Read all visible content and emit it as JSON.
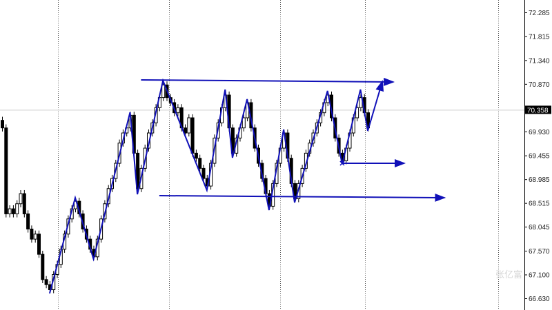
{
  "chart_data": {
    "type": "candlestick",
    "title": "",
    "xlabel": "",
    "ylabel": "",
    "ylim": [
      66.55,
      72.5
    ],
    "grid": "vertical dotted",
    "y_ticks": [
      "72.285",
      "71.815",
      "71.340",
      "70.870",
      "69.930",
      "69.455",
      "68.985",
      "68.515",
      "68.045",
      "67.570",
      "67.100",
      "66.630"
    ],
    "current_price": "70.358",
    "close": [
      70.0,
      68.3,
      68.4,
      68.3,
      68.5,
      68.7,
      68.3,
      68.0,
      67.8,
      67.9,
      67.5,
      67.0,
      66.9,
      66.8,
      67.1,
      67.3,
      67.6,
      67.9,
      68.2,
      68.4,
      68.55,
      68.3,
      68.0,
      67.8,
      67.6,
      67.45,
      67.8,
      68.2,
      68.5,
      68.8,
      69.0,
      69.3,
      69.7,
      69.9,
      70.0,
      70.25,
      69.5,
      68.8,
      69.2,
      69.6,
      69.9,
      70.1,
      70.4,
      70.6,
      70.85,
      70.6,
      70.5,
      70.3,
      70.4,
      70.0,
      69.9,
      70.2,
      69.5,
      69.4,
      69.2,
      69.0,
      68.85,
      69.3,
      69.8,
      70.1,
      70.4,
      70.65,
      70.0,
      69.5,
      69.8,
      70.0,
      70.2,
      70.5,
      70.0,
      69.6,
      69.3,
      69.0,
      68.7,
      68.45,
      68.9,
      69.3,
      69.6,
      69.9,
      69.4,
      68.9,
      68.6,
      68.9,
      69.2,
      69.5,
      69.7,
      69.9,
      70.1,
      70.3,
      70.5,
      70.65,
      70.2,
      69.8,
      69.5,
      69.35,
      69.6,
      69.9,
      70.2,
      70.4,
      70.6,
      70.3,
      70.0
    ],
    "zigzag": [
      [
        13,
        66.725
      ],
      [
        20,
        68.619
      ],
      [
        25,
        67.407
      ],
      [
        35,
        70.309
      ],
      [
        37,
        68.687
      ],
      [
        44,
        70.936
      ],
      [
        56,
        68.769
      ],
      [
        61,
        70.759
      ],
      [
        63,
        69.41
      ],
      [
        67,
        70.568
      ],
      [
        73,
        68.374
      ],
      [
        77,
        69.968
      ],
      [
        80,
        68.524
      ],
      [
        89,
        70.732
      ],
      [
        93,
        69.287
      ],
      [
        98,
        70.759
      ],
      [
        100,
        69.941
      ],
      [
        104,
        70.922
      ]
    ],
    "trend_lines": [
      {
        "from": [
          38,
          70.95
        ],
        "to": [
          107,
          70.909
        ]
      },
      {
        "from": [
          43,
          68.66
        ],
        "to": [
          121,
          68.619
        ]
      },
      {
        "from": [
          93,
          69.301
        ],
        "to": [
          110,
          69.301
        ]
      }
    ],
    "colors": {
      "drawing": "#1010b8",
      "bull": "#ffffff",
      "bear": "#000000",
      "grid": "#555555",
      "current_line": "#cccccc"
    }
  },
  "watermark": "张亿富"
}
